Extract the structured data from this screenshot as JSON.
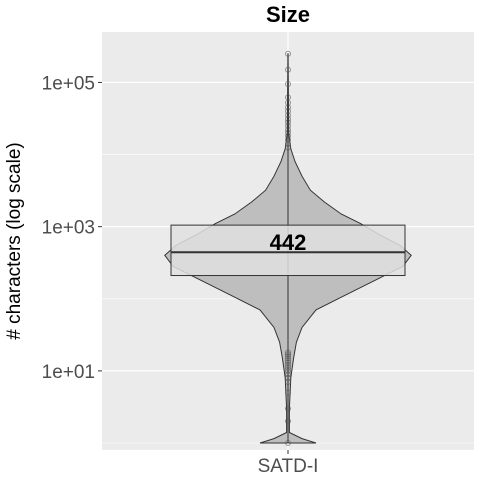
{
  "chart_data": {
    "type": "violin",
    "title": "Size",
    "xlabel": "",
    "ylabel": "# characters (log scale)",
    "y_scale": "log10",
    "ylim": [
      0.8,
      500000
    ],
    "y_ticks": [
      {
        "value": 10,
        "label": "1e+01"
      },
      {
        "value": 1000,
        "label": "1e+03"
      },
      {
        "value": 100000,
        "label": "1e+05"
      }
    ],
    "categories": [
      "SATD-I"
    ],
    "grid": true,
    "colors": {
      "panel": "#ebebeb",
      "grid": "#ffffff",
      "violin": "#bebebe",
      "box": "#e0e0e0",
      "outline": "#333333"
    },
    "series": [
      {
        "category": "SATD-I",
        "median": 442,
        "median_label": "442",
        "q1": 210,
        "q3": 1050,
        "whisker_low": 1,
        "whisker_high": 250000,
        "density_profile": [
          {
            "y": 1,
            "w": 0.2
          },
          {
            "y": 1.15,
            "w": 0.1
          },
          {
            "y": 1.4,
            "w": 0.01
          },
          {
            "y": 3,
            "w": 0.01
          },
          {
            "y": 8,
            "w": 0.02
          },
          {
            "y": 15,
            "w": 0.04
          },
          {
            "y": 25,
            "w": 0.06
          },
          {
            "y": 40,
            "w": 0.1
          },
          {
            "y": 70,
            "w": 0.2
          },
          {
            "y": 110,
            "w": 0.4
          },
          {
            "y": 180,
            "w": 0.62
          },
          {
            "y": 280,
            "w": 0.82
          },
          {
            "y": 400,
            "w": 0.88
          },
          {
            "y": 550,
            "w": 0.8
          },
          {
            "y": 800,
            "w": 0.64
          },
          {
            "y": 1100,
            "w": 0.52
          },
          {
            "y": 1500,
            "w": 0.38
          },
          {
            "y": 2200,
            "w": 0.26
          },
          {
            "y": 3200,
            "w": 0.16
          },
          {
            "y": 5000,
            "w": 0.1
          },
          {
            "y": 8000,
            "w": 0.05
          },
          {
            "y": 12000,
            "w": 0.02
          },
          {
            "y": 20000,
            "w": 0.005
          },
          {
            "y": 250000,
            "w": 0.001
          }
        ],
        "outliers": [
          1,
          2,
          3,
          5,
          7,
          8,
          9,
          10,
          11,
          12,
          13,
          14,
          15,
          16,
          17,
          18,
          12500,
          14000,
          16000,
          18000,
          20000,
          22000,
          25000,
          28000,
          31000,
          35000,
          40000,
          45000,
          52000,
          62000,
          95000,
          150000,
          250000
        ]
      }
    ]
  }
}
